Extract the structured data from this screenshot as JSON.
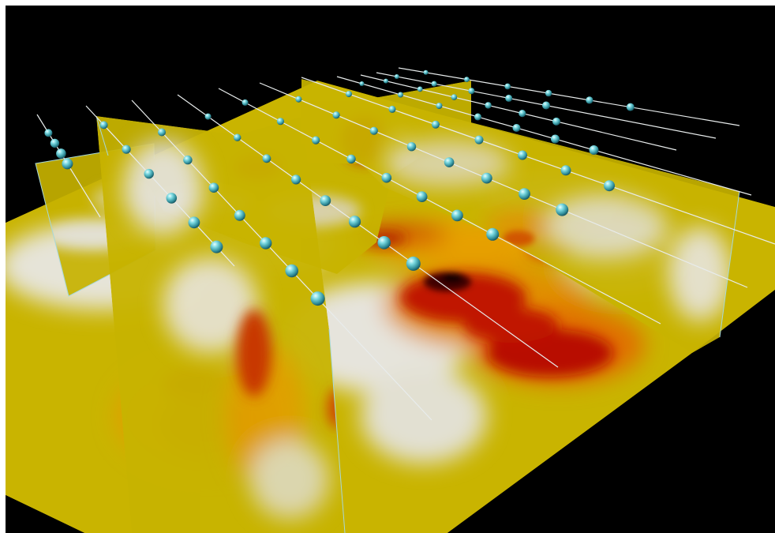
{
  "viewer": {
    "background_color": "#000000",
    "frame_color": "#ffffff"
  },
  "scene": {
    "description_visible_text": "",
    "colormap": {
      "low": "#d8d8d0",
      "mid_low": "#c9b400",
      "mid": "#e8a000",
      "high": "#b80000",
      "peak": "#200000"
    },
    "sensor_color": "#6fd4dc",
    "borehole_line_color": "#e8ecec",
    "slice_edge_color": "#a8d8d8",
    "counts": {
      "boreholes": 12,
      "vertical_slices": 4,
      "horizontal_slices": 1
    }
  }
}
